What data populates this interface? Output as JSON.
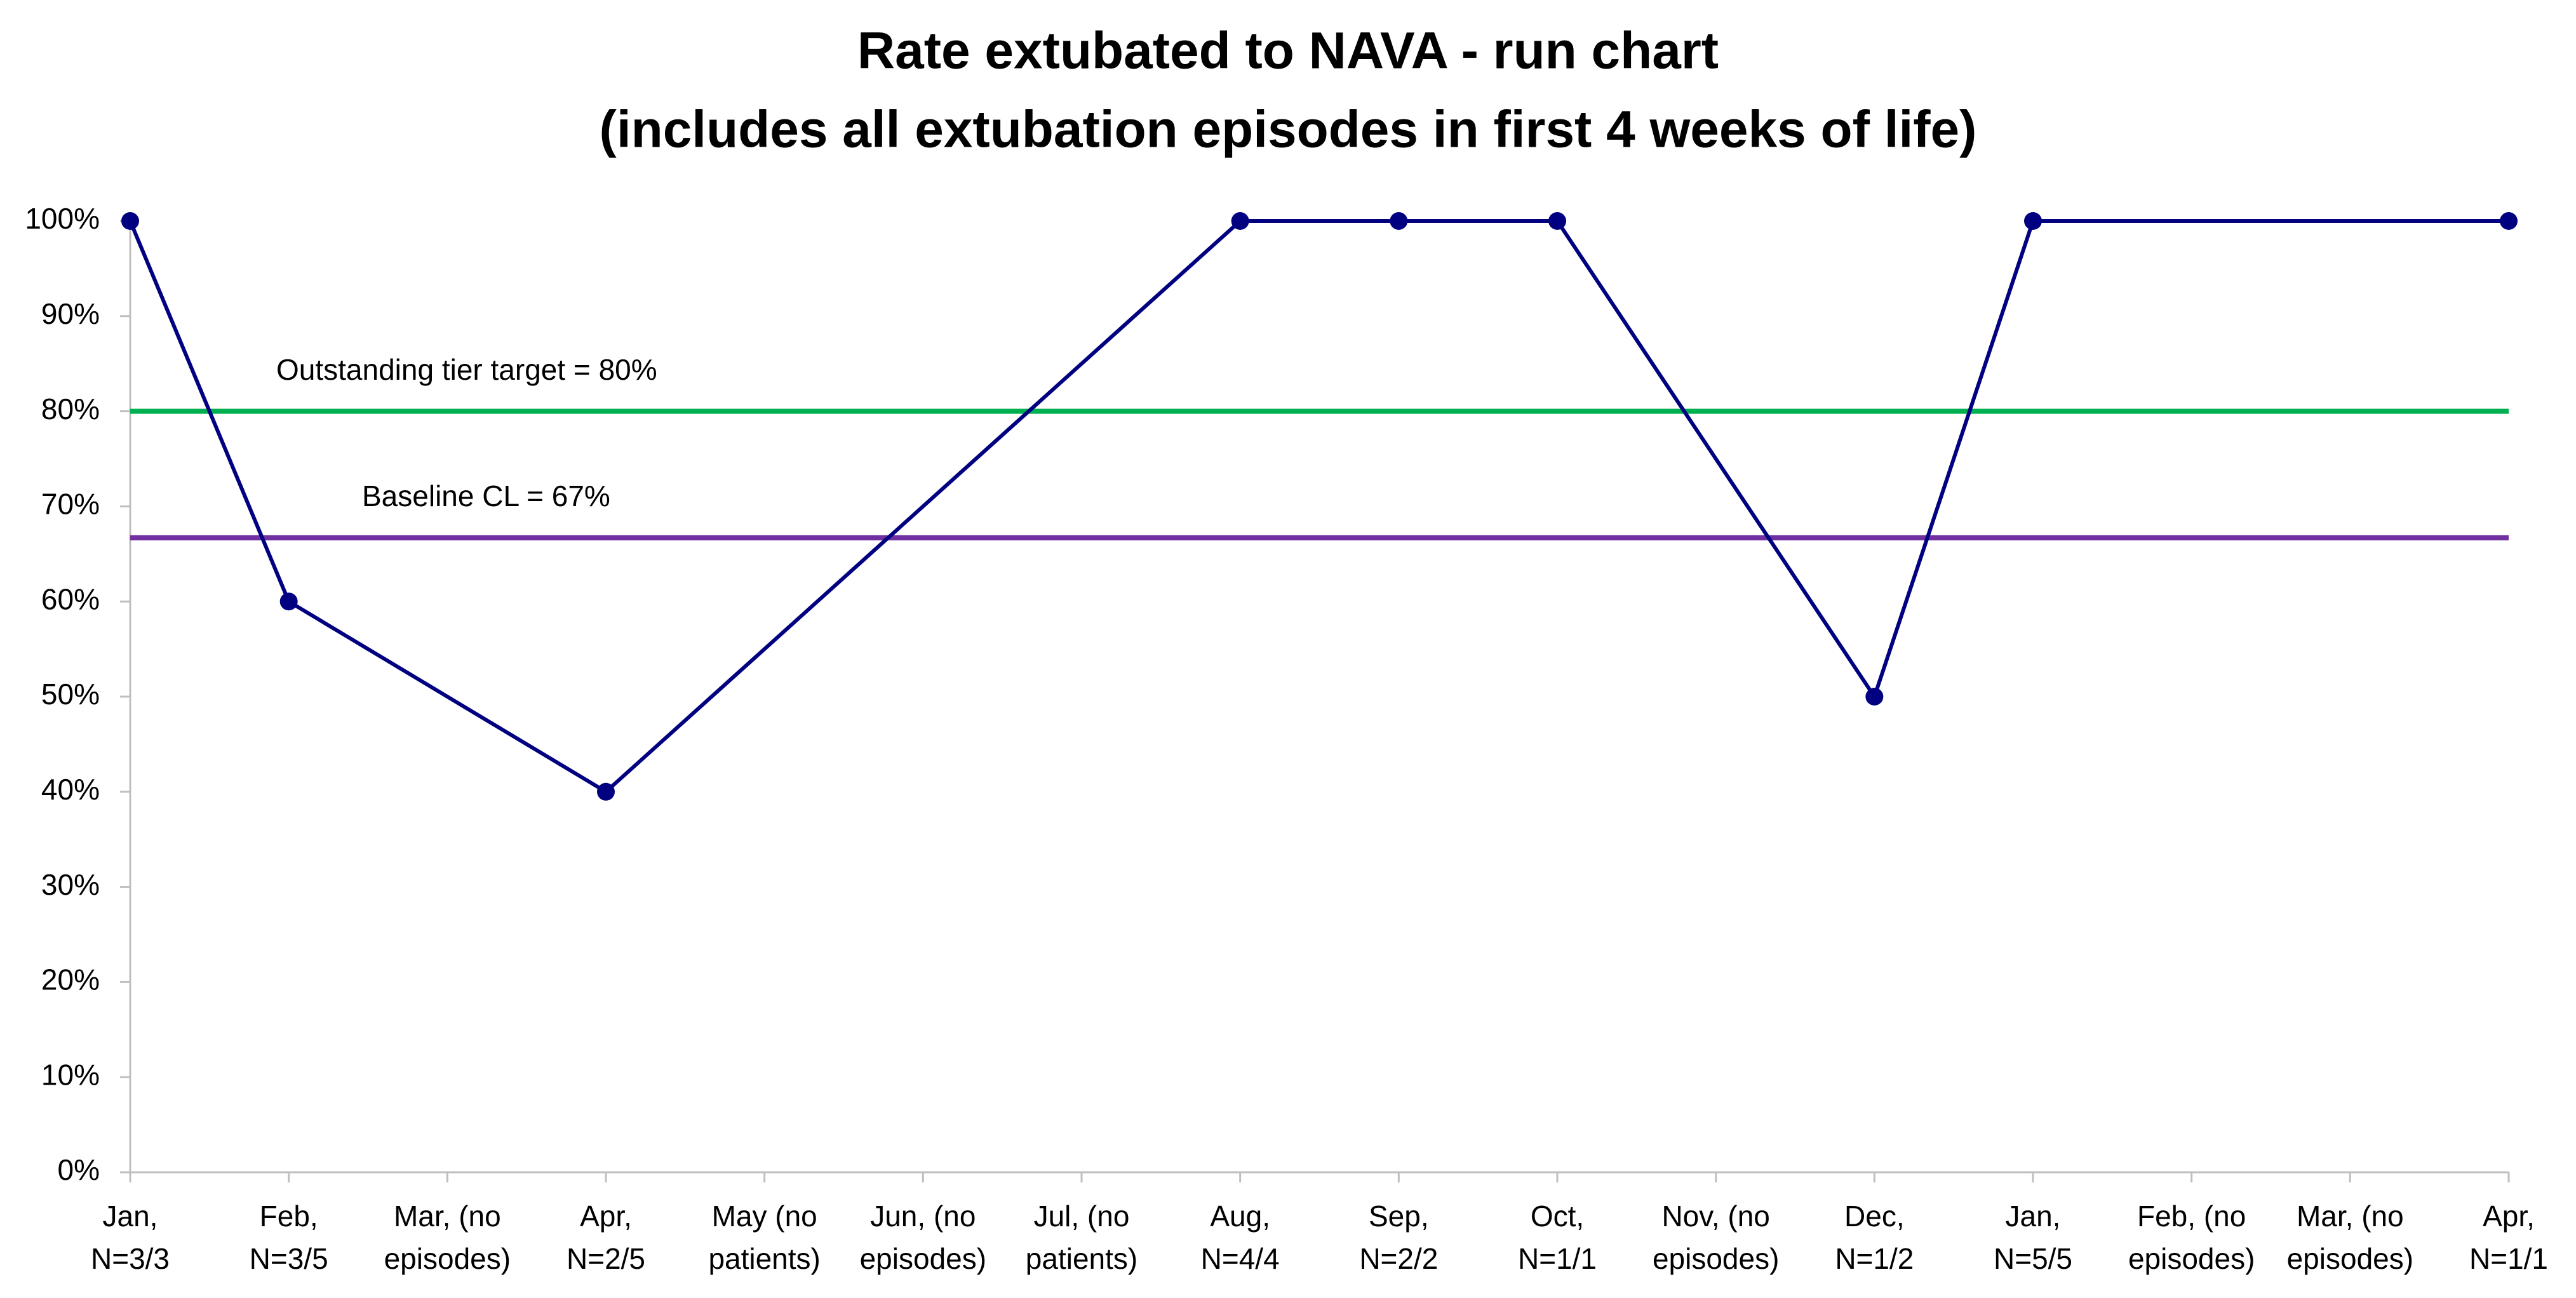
{
  "chart_data": {
    "type": "line",
    "title": [
      "Rate extubated to NAVA - run chart",
      "(includes all extubation episodes in first 4 weeks of life)"
    ],
    "categories": [
      [
        "Jan,",
        "N=3/3"
      ],
      [
        "Feb,",
        "N=3/5"
      ],
      [
        "Mar, (no",
        "episodes)"
      ],
      [
        "Apr,",
        "N=2/5"
      ],
      [
        "May (no",
        "patients)"
      ],
      [
        "Jun, (no",
        "episodes)"
      ],
      [
        "Jul, (no",
        "patients)"
      ],
      [
        "Aug,",
        "N=4/4"
      ],
      [
        "Sep,",
        "N=2/2"
      ],
      [
        "Oct,",
        "N=1/1"
      ],
      [
        "Nov, (no",
        "episodes)"
      ],
      [
        "Dec,",
        "N=1/2"
      ],
      [
        "Jan,",
        "N=5/5"
      ],
      [
        "Feb, (no",
        "episodes)"
      ],
      [
        "Mar, (no",
        "episodes)"
      ],
      [
        "Apr,",
        "N=1/1"
      ]
    ],
    "series": [
      {
        "color": "#000080",
        "values": [
          100,
          60,
          null,
          40,
          null,
          null,
          null,
          100,
          100,
          100,
          null,
          50,
          100,
          null,
          null,
          100
        ]
      }
    ],
    "span_gaps": true,
    "reference_lines": [
      {
        "label": "Outstanding tier target = 80%",
        "value": 80,
        "color": "#00b050"
      },
      {
        "label": "Baseline CL = 67%",
        "value": 66.7,
        "color": "#7030a0"
      }
    ],
    "ylim": [
      0,
      100
    ],
    "yticks": [
      {
        "value": 0,
        "label": "0%"
      },
      {
        "value": 10,
        "label": "10%"
      },
      {
        "value": 20,
        "label": "20%"
      },
      {
        "value": 30,
        "label": "30%"
      },
      {
        "value": 40,
        "label": "40%"
      },
      {
        "value": 50,
        "label": "50%"
      },
      {
        "value": 60,
        "label": "60%"
      },
      {
        "value": 70,
        "label": "70%"
      },
      {
        "value": 80,
        "label": "80%"
      },
      {
        "value": 90,
        "label": "90%"
      },
      {
        "value": 100,
        "label": "100%"
      }
    ]
  }
}
